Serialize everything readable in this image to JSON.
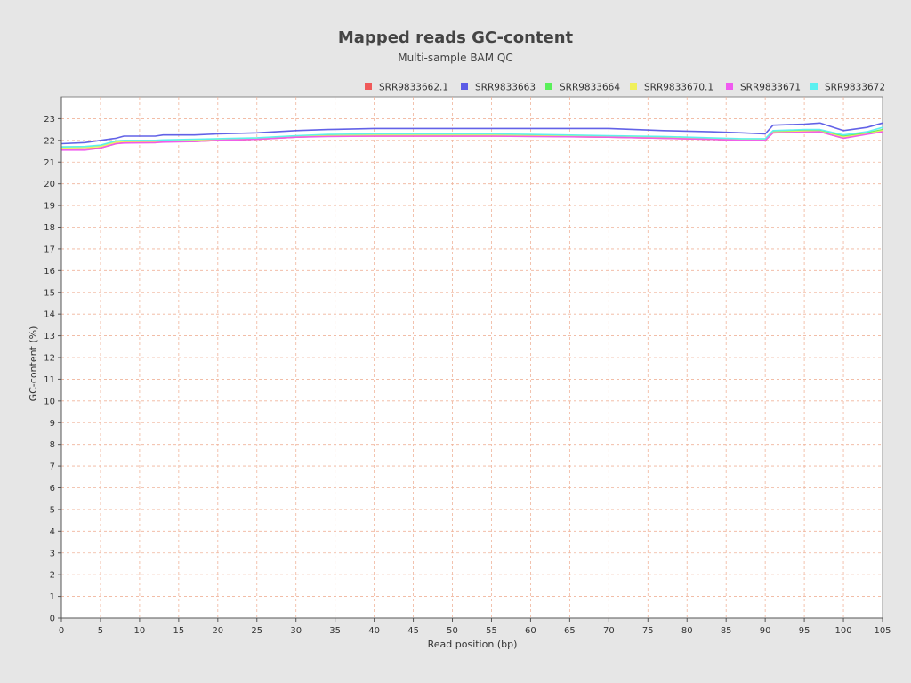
{
  "chart_data": {
    "type": "line",
    "title": "Mapped reads GC-content",
    "subtitle": "Multi-sample BAM QC",
    "xlabel": "Read position (bp)",
    "ylabel": "GC-content (%)",
    "xlim": [
      0,
      105
    ],
    "ylim": [
      0,
      24
    ],
    "xticks": [
      "0",
      "5",
      "10",
      "15",
      "20",
      "25",
      "30",
      "35",
      "40",
      "45",
      "50",
      "55",
      "60",
      "65",
      "70",
      "75",
      "80",
      "85",
      "90",
      "95",
      "100",
      "105"
    ],
    "yticks": [
      "0",
      "1",
      "2",
      "3",
      "4",
      "5",
      "6",
      "7",
      "8",
      "9",
      "10",
      "11",
      "12",
      "13",
      "14",
      "15",
      "16",
      "17",
      "18",
      "19",
      "20",
      "21",
      "22",
      "23"
    ],
    "grid": true,
    "legend_position": "top-right",
    "key_points": [
      0,
      3,
      5,
      7,
      8,
      12,
      13,
      17,
      20,
      25,
      30,
      34,
      40,
      45,
      55,
      60,
      70,
      77,
      83,
      87,
      90,
      91,
      95,
      97,
      100,
      103,
      105
    ],
    "series": [
      {
        "name": "SRR9833662.1",
        "color": "#f05a5a",
        "values": [
          21.6,
          21.6,
          21.65,
          21.85,
          21.9,
          21.9,
          21.95,
          21.95,
          22.0,
          22.05,
          22.15,
          22.2,
          22.2,
          22.2,
          22.2,
          22.2,
          22.15,
          22.1,
          22.05,
          22.0,
          22.0,
          22.35,
          22.4,
          22.4,
          22.1,
          22.3,
          22.4
        ]
      },
      {
        "name": "SRR9833663",
        "color": "#5a5ae6",
        "values": [
          21.85,
          21.9,
          22.0,
          22.1,
          22.2,
          22.2,
          22.25,
          22.25,
          22.3,
          22.35,
          22.45,
          22.5,
          22.55,
          22.55,
          22.55,
          22.55,
          22.55,
          22.45,
          22.4,
          22.35,
          22.3,
          22.7,
          22.75,
          22.8,
          22.45,
          22.6,
          22.8
        ]
      },
      {
        "name": "SRR9833664",
        "color": "#5af05a",
        "values": [
          21.7,
          21.7,
          21.75,
          21.95,
          21.98,
          21.98,
          22.0,
          22.02,
          22.05,
          22.1,
          22.2,
          22.25,
          22.28,
          22.28,
          22.27,
          22.25,
          22.2,
          22.15,
          22.1,
          22.05,
          22.05,
          22.4,
          22.45,
          22.45,
          22.2,
          22.35,
          22.5
        ]
      },
      {
        "name": "SRR9833670.1",
        "color": "#f0f05a",
        "values": [
          21.65,
          21.68,
          21.72,
          21.92,
          21.95,
          21.95,
          21.98,
          22.0,
          22.02,
          22.08,
          22.18,
          22.22,
          22.25,
          22.25,
          22.25,
          22.22,
          22.18,
          22.12,
          22.08,
          22.02,
          22.02,
          22.38,
          22.42,
          22.42,
          22.15,
          22.3,
          22.45
        ]
      },
      {
        "name": "SRR9833671",
        "color": "#f05af0",
        "values": [
          21.55,
          21.55,
          21.65,
          21.85,
          21.88,
          21.9,
          21.92,
          21.95,
          22.0,
          22.05,
          22.15,
          22.18,
          22.2,
          22.2,
          22.2,
          22.18,
          22.15,
          22.1,
          22.05,
          22.0,
          22.0,
          22.35,
          22.38,
          22.4,
          22.1,
          22.28,
          22.4
        ]
      },
      {
        "name": "SRR9833672",
        "color": "#5af0f0",
        "values": [
          21.7,
          21.72,
          21.78,
          21.98,
          22.0,
          22.0,
          22.02,
          22.05,
          22.08,
          22.12,
          22.22,
          22.28,
          22.3,
          22.3,
          22.3,
          22.28,
          22.22,
          22.18,
          22.12,
          22.08,
          22.08,
          22.45,
          22.5,
          22.5,
          22.25,
          22.4,
          22.6
        ]
      }
    ]
  }
}
